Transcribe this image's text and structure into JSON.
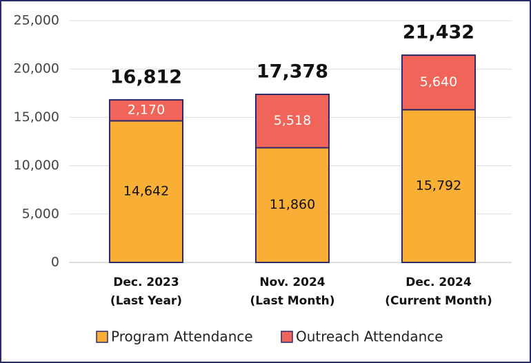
{
  "chart_data": {
    "type": "stacked_bar",
    "categories": [
      [
        "Dec. 2023",
        "(Last Year)"
      ],
      [
        "Nov. 2024",
        "(Last Month)"
      ],
      [
        "Dec. 2024",
        "(Current Month)"
      ]
    ],
    "series": [
      {
        "name": "Program Attendance",
        "color": "#f9ae35",
        "label_color": "#111111",
        "values": [
          14642,
          11860,
          15792
        ],
        "value_labels": [
          "14,642",
          "11,860",
          "15,792"
        ]
      },
      {
        "name": "Outreach Attendance",
        "color": "#f0645a",
        "label_color": "#ffffff",
        "values": [
          2170,
          5518,
          5640
        ],
        "value_labels": [
          "2,170",
          "5,518",
          "5,640"
        ]
      }
    ],
    "totals": [
      16812,
      17378,
      21432
    ],
    "total_labels": [
      "16,812",
      "17,378",
      "21,432"
    ],
    "ylim": [
      0,
      25000
    ],
    "yticks": [
      0,
      {
        "value": 5000,
        "label": "5,000"
      },
      {
        "value": 10000,
        "label": "10,000"
      },
      {
        "value": 15000,
        "label": "15,000"
      },
      {
        "value": 20000,
        "label": "20,000"
      },
      {
        "value": 25000,
        "label": "25,000"
      }
    ],
    "grid": true,
    "legend": "bottom"
  }
}
